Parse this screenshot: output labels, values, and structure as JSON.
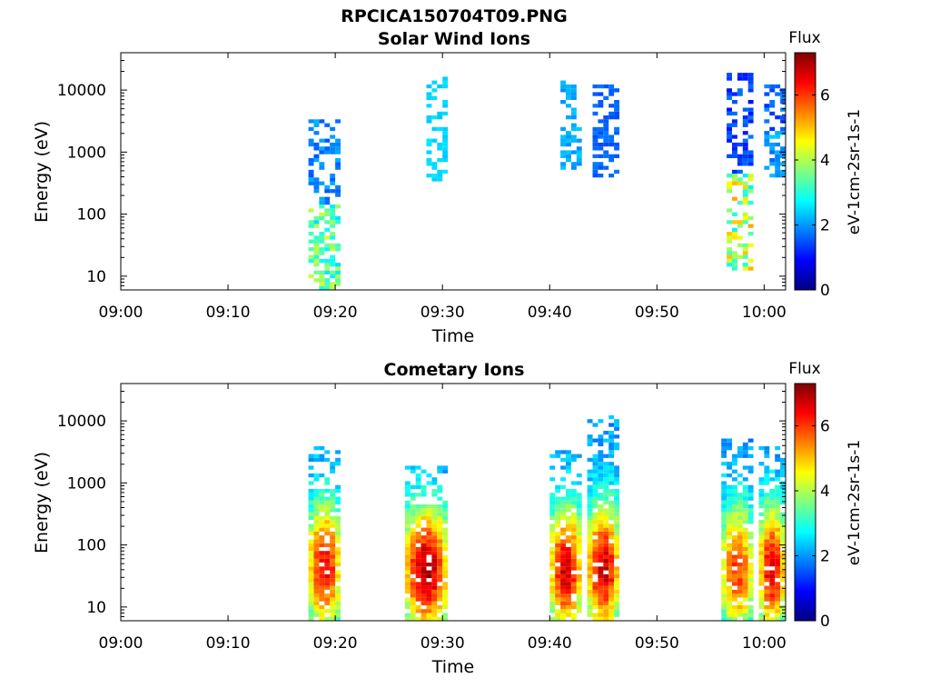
{
  "figure_title": "RPCICA150704T09.PNG",
  "chart_data": [
    {
      "type": "heatmap",
      "title": "Solar Wind Ions",
      "xlabel": "Time",
      "ylabel": "Energy (eV)",
      "x_ticks": [
        "09:00",
        "09:10",
        "09:20",
        "09:30",
        "09:40",
        "09:50",
        "10:00"
      ],
      "y_ticks": [
        "10",
        "100",
        "1000",
        "10000"
      ],
      "y_scale": "log",
      "ylim": [
        6,
        40000
      ],
      "colorbar": {
        "title": "Flux",
        "label": "eV-1cm-2sr-1s-1",
        "ticks": [
          "0",
          "2",
          "4",
          "6"
        ],
        "range": [
          0,
          7.3
        ],
        "colormap": "jet"
      },
      "bursts": [
        {
          "t0": "09:17:30",
          "t1": "09:20:30",
          "e_lo": 6,
          "e_hi": 3500,
          "hi_flux_min": 1.5,
          "hi_flux_max": 2.2,
          "lo_flux_min": 2.5,
          "lo_flux_max": 4.3
        },
        {
          "t0": "09:28:30",
          "t1": "09:30:30",
          "e_lo": 350,
          "e_hi": 16000,
          "hi_flux_min": 2.3,
          "hi_flux_max": 2.6,
          "lo_flux_min": 2.3,
          "lo_flux_max": 2.6
        },
        {
          "t0": "09:41:00",
          "t1": "09:43:00",
          "e_lo": 500,
          "e_hi": 15000,
          "hi_flux_min": 1.9,
          "hi_flux_max": 2.4,
          "lo_flux_min": 1.9,
          "lo_flux_max": 2.4
        },
        {
          "t0": "09:44:00",
          "t1": "09:46:30",
          "e_lo": 400,
          "e_hi": 13000,
          "hi_flux_min": 1.4,
          "hi_flux_max": 1.8,
          "lo_flux_min": 1.4,
          "lo_flux_max": 1.8
        },
        {
          "t0": "09:56:30",
          "t1": "09:59:00",
          "e_lo": 12,
          "e_hi": 19000,
          "hi_flux_min": 1.0,
          "hi_flux_max": 1.8,
          "lo_flux_min": 2.6,
          "lo_flux_max": 5.2
        },
        {
          "t0": "10:00:00",
          "t1": "10:02:00",
          "e_lo": 400,
          "e_hi": 12000,
          "hi_flux_min": 1.2,
          "hi_flux_max": 2.0,
          "lo_flux_min": 1.6,
          "lo_flux_max": 2.4
        }
      ]
    },
    {
      "type": "heatmap",
      "title": "Cometary Ions",
      "xlabel": "Time",
      "ylabel": "Energy (eV)",
      "x_ticks": [
        "09:00",
        "09:10",
        "09:20",
        "09:30",
        "09:40",
        "09:50",
        "10:00"
      ],
      "y_ticks": [
        "10",
        "100",
        "1000",
        "10000"
      ],
      "y_scale": "log",
      "ylim": [
        6,
        40000
      ],
      "colorbar": {
        "title": "Flux",
        "label": "eV-1cm-2sr-1s-1",
        "ticks": [
          "0",
          "2",
          "4",
          "6"
        ],
        "range": [
          0,
          7.3
        ],
        "colormap": "jet"
      },
      "bursts": [
        {
          "t0": "09:17:30",
          "t1": "09:20:30",
          "e_lo": 6,
          "e_hi": 4000,
          "peak_e": 45,
          "peak_flux": 6.5
        },
        {
          "t0": "09:26:30",
          "t1": "09:30:30",
          "e_lo": 6,
          "e_hi": 1800,
          "peak_e": 40,
          "peak_flux": 7.0
        },
        {
          "t0": "09:40:00",
          "t1": "09:43:00",
          "e_lo": 6,
          "e_hi": 3500,
          "peak_e": 40,
          "peak_flux": 6.7
        },
        {
          "t0": "09:43:30",
          "t1": "09:46:30",
          "e_lo": 6,
          "e_hi": 12000,
          "peak_e": 42,
          "peak_flux": 6.8
        },
        {
          "t0": "09:56:00",
          "t1": "09:59:00",
          "e_lo": 6,
          "e_hi": 5000,
          "peak_e": 40,
          "peak_flux": 6.0
        },
        {
          "t0": "09:59:30",
          "t1": "10:02:00",
          "e_lo": 6,
          "e_hi": 4000,
          "peak_e": 40,
          "peak_flux": 6.6
        }
      ]
    }
  ]
}
